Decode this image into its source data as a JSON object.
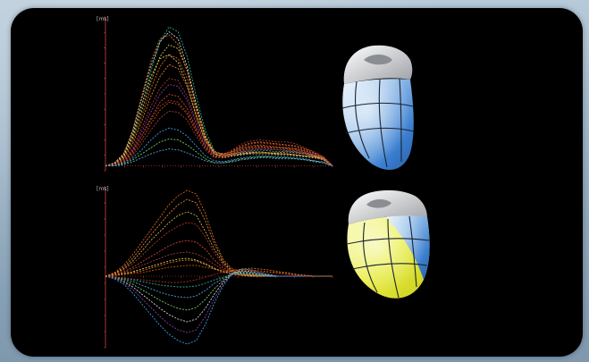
{
  "chart_data": [
    {
      "type": "line",
      "panel": "top",
      "y_tick_label": "[ms]",
      "series_count": 16,
      "x": [
        0,
        4,
        8,
        12,
        16,
        20,
        24,
        28,
        32,
        36,
        40,
        44,
        48,
        52,
        56,
        60,
        64,
        68,
        72,
        76,
        80,
        84,
        88,
        92,
        96,
        100
      ],
      "series": [
        {
          "color": "#2fb7a3",
          "values": [
            0,
            2,
            10,
            30,
            60,
            95,
            125,
            140,
            135,
            110,
            70,
            35,
            15,
            10,
            12,
            14,
            15,
            16,
            15,
            14,
            15,
            14,
            12,
            10,
            8,
            0
          ]
        },
        {
          "color": "#e8e8e8",
          "values": [
            0,
            3,
            12,
            35,
            68,
            100,
            125,
            135,
            128,
            100,
            62,
            30,
            12,
            8,
            10,
            12,
            13,
            14,
            13,
            12,
            12,
            11,
            10,
            9,
            7,
            0
          ]
        },
        {
          "color": "#d9c24a",
          "values": [
            0,
            2,
            9,
            28,
            55,
            85,
            110,
            122,
            118,
            96,
            60,
            30,
            14,
            11,
            12,
            13,
            14,
            14,
            13,
            13,
            14,
            13,
            12,
            10,
            8,
            0
          ]
        },
        {
          "color": "#e36a1e",
          "values": [
            0,
            2,
            8,
            25,
            50,
            78,
            100,
            112,
            108,
            88,
            55,
            28,
            14,
            12,
            14,
            18,
            20,
            21,
            20,
            19,
            18,
            17,
            15,
            12,
            8,
            0
          ]
        },
        {
          "color": "#f08a3a",
          "values": [
            0,
            1,
            7,
            22,
            45,
            70,
            90,
            102,
            98,
            80,
            50,
            26,
            13,
            12,
            15,
            20,
            23,
            24,
            23,
            22,
            21,
            20,
            17,
            13,
            9,
            0
          ]
        },
        {
          "color": "#c0392b",
          "values": [
            0,
            1,
            6,
            18,
            38,
            60,
            78,
            88,
            86,
            70,
            45,
            24,
            12,
            11,
            16,
            22,
            25,
            26,
            25,
            24,
            24,
            22,
            18,
            14,
            9,
            0
          ]
        },
        {
          "color": "#8e44ad",
          "values": [
            0,
            1,
            5,
            16,
            34,
            54,
            72,
            82,
            80,
            66,
            42,
            22,
            11,
            10,
            12,
            15,
            17,
            18,
            17,
            16,
            16,
            15,
            13,
            11,
            8,
            0
          ]
        },
        {
          "color": "#f2d56b",
          "values": [
            0,
            2,
            10,
            32,
            62,
            90,
            108,
            112,
            104,
            82,
            50,
            25,
            12,
            9,
            10,
            11,
            12,
            12,
            12,
            11,
            11,
            10,
            9,
            8,
            6,
            0
          ]
        },
        {
          "color": "#e74c3c",
          "values": [
            0,
            1,
            4,
            14,
            30,
            48,
            64,
            72,
            70,
            58,
            38,
            20,
            10,
            10,
            13,
            17,
            19,
            20,
            19,
            18,
            18,
            17,
            14,
            11,
            8,
            0
          ]
        },
        {
          "color": "#d35400",
          "values": [
            0,
            1,
            4,
            12,
            26,
            42,
            56,
            64,
            62,
            52,
            34,
            18,
            9,
            9,
            12,
            16,
            18,
            19,
            18,
            18,
            17,
            16,
            13,
            10,
            7,
            0
          ]
        },
        {
          "color": "#a94442",
          "values": [
            0,
            1,
            3,
            10,
            22,
            36,
            48,
            55,
            54,
            46,
            30,
            16,
            8,
            8,
            11,
            14,
            16,
            17,
            16,
            16,
            15,
            14,
            12,
            9,
            6,
            0
          ]
        },
        {
          "color": "#3fa9f5",
          "values": [
            0,
            1,
            3,
            8,
            16,
            26,
            34,
            38,
            36,
            30,
            20,
            10,
            5,
            4,
            6,
            8,
            9,
            10,
            10,
            9,
            9,
            8,
            7,
            5,
            4,
            0
          ]
        },
        {
          "color": "#7ddc7a",
          "values": [
            0,
            0,
            2,
            6,
            12,
            18,
            24,
            27,
            26,
            21,
            14,
            7,
            3,
            3,
            5,
            7,
            8,
            9,
            9,
            8,
            8,
            7,
            6,
            5,
            3,
            0
          ]
        },
        {
          "color": "#e67e22",
          "values": [
            0,
            2,
            11,
            36,
            70,
            105,
            128,
            132,
            122,
            96,
            58,
            28,
            12,
            10,
            11,
            12,
            13,
            13,
            13,
            12,
            12,
            11,
            10,
            9,
            7,
            0
          ]
        },
        {
          "color": "#b03a2e",
          "values": [
            0,
            1,
            5,
            15,
            30,
            46,
            60,
            66,
            64,
            54,
            36,
            19,
            10,
            10,
            14,
            19,
            22,
            23,
            22,
            21,
            20,
            19,
            16,
            12,
            8,
            0
          ]
        },
        {
          "color": "#5dade2",
          "values": [
            0,
            0,
            1,
            4,
            8,
            12,
            15,
            17,
            16,
            13,
            9,
            5,
            3,
            3,
            4,
            6,
            7,
            8,
            8,
            7,
            7,
            7,
            6,
            4,
            3,
            0
          ]
        }
      ],
      "ylim": [
        -5,
        150
      ],
      "xlim": [
        0,
        100
      ]
    },
    {
      "type": "line",
      "panel": "bottom",
      "y_tick_label": "[ms]",
      "series_count": 16,
      "x": [
        0,
        4,
        8,
        12,
        16,
        20,
        24,
        28,
        32,
        36,
        40,
        44,
        48,
        52,
        56,
        60,
        64,
        68,
        72,
        76,
        80,
        84,
        88,
        92,
        96,
        100
      ],
      "series": [
        {
          "color": "#e36a1e",
          "values": [
            0,
            4,
            12,
            24,
            38,
            52,
            66,
            80,
            90,
            96,
            92,
            70,
            40,
            18,
            8,
            4,
            2,
            1,
            0,
            0,
            0,
            0,
            0,
            0,
            0,
            0
          ]
        },
        {
          "color": "#f08a3a",
          "values": [
            0,
            3,
            10,
            20,
            33,
            46,
            58,
            70,
            80,
            86,
            82,
            62,
            36,
            16,
            6,
            3,
            2,
            1,
            0,
            0,
            0,
            0,
            0,
            0,
            0,
            0
          ]
        },
        {
          "color": "#d9c24a",
          "values": [
            0,
            3,
            8,
            17,
            28,
            40,
            50,
            60,
            68,
            72,
            68,
            50,
            30,
            14,
            5,
            2,
            1,
            0,
            0,
            0,
            0,
            0,
            0,
            0,
            0,
            0
          ]
        },
        {
          "color": "#c0392b",
          "values": [
            0,
            2,
            7,
            14,
            23,
            33,
            42,
            50,
            56,
            60,
            58,
            44,
            26,
            12,
            4,
            2,
            1,
            0,
            0,
            0,
            0,
            0,
            0,
            0,
            0,
            0
          ]
        },
        {
          "color": "#e74c3c",
          "values": [
            0,
            2,
            5,
            10,
            16,
            22,
            28,
            34,
            38,
            40,
            38,
            30,
            18,
            9,
            4,
            2,
            1,
            0,
            0,
            0,
            0,
            0,
            0,
            0,
            0,
            0
          ]
        },
        {
          "color": "#a94442",
          "values": [
            0,
            1,
            4,
            8,
            12,
            16,
            20,
            24,
            26,
            27,
            25,
            20,
            13,
            7,
            3,
            1,
            0,
            0,
            0,
            0,
            0,
            0,
            0,
            0,
            0,
            0
          ]
        },
        {
          "color": "#f2d56b",
          "values": [
            0,
            1,
            3,
            5,
            8,
            11,
            14,
            17,
            19,
            20,
            18,
            14,
            9,
            5,
            2,
            1,
            0,
            0,
            0,
            0,
            0,
            0,
            0,
            0,
            0,
            0
          ]
        },
        {
          "color": "#2fb7a3",
          "values": [
            0,
            -1,
            -2,
            -4,
            -6,
            -8,
            -10,
            -11,
            -12,
            -12,
            -11,
            -8,
            -4,
            -1,
            2,
            3,
            2,
            1,
            0,
            0,
            0,
            0,
            0,
            0,
            0,
            0
          ]
        },
        {
          "color": "#5dade2",
          "values": [
            0,
            -1,
            -3,
            -6,
            -10,
            -14,
            -18,
            -21,
            -23,
            -24,
            -22,
            -16,
            -8,
            -2,
            3,
            4,
            3,
            2,
            1,
            0,
            0,
            0,
            0,
            0,
            0,
            0
          ]
        },
        {
          "color": "#7ddc7a",
          "values": [
            0,
            -1,
            -4,
            -9,
            -15,
            -21,
            -27,
            -32,
            -36,
            -38,
            -35,
            -26,
            -14,
            -4,
            3,
            5,
            4,
            2,
            1,
            0,
            0,
            0,
            0,
            0,
            0,
            0
          ]
        },
        {
          "color": "#e8e8e8",
          "values": [
            0,
            -2,
            -6,
            -12,
            -20,
            -28,
            -36,
            -43,
            -48,
            -51,
            -48,
            -36,
            -20,
            -6,
            3,
            6,
            5,
            3,
            1,
            0,
            0,
            0,
            0,
            0,
            0,
            0
          ]
        },
        {
          "color": "#8e44ad",
          "values": [
            0,
            -2,
            -7,
            -15,
            -25,
            -35,
            -45,
            -54,
            -60,
            -63,
            -60,
            -45,
            -25,
            -8,
            3,
            7,
            6,
            3,
            1,
            0,
            0,
            0,
            0,
            0,
            0,
            0
          ]
        },
        {
          "color": "#3fa9f5",
          "values": [
            0,
            -3,
            -9,
            -19,
            -31,
            -43,
            -55,
            -65,
            -72,
            -76,
            -72,
            -54,
            -30,
            -10,
            3,
            8,
            7,
            4,
            2,
            0,
            0,
            0,
            0,
            0,
            0,
            0
          ]
        },
        {
          "color": "#d35400",
          "values": [
            0,
            1,
            2,
            3,
            4,
            6,
            8,
            10,
            11,
            12,
            12,
            10,
            8,
            6,
            6,
            7,
            7,
            6,
            5,
            4,
            3,
            2,
            1,
            0,
            0,
            0
          ]
        },
        {
          "color": "#b03a2e",
          "values": [
            0,
            -1,
            -2,
            -3,
            -4,
            -5,
            -6,
            -7,
            -7,
            -6,
            -4,
            -1,
            2,
            5,
            7,
            7,
            6,
            5,
            4,
            3,
            2,
            1,
            0,
            0,
            0,
            0
          ]
        },
        {
          "color": "#e67e22",
          "values": [
            0,
            1,
            2,
            4,
            6,
            9,
            12,
            15,
            17,
            18,
            17,
            13,
            8,
            4,
            6,
            8,
            9,
            8,
            7,
            5,
            4,
            2,
            1,
            0,
            0,
            0
          ]
        }
      ],
      "ylim": [
        -80,
        100
      ],
      "xlim": [
        0,
        100
      ]
    }
  ],
  "illustrations": [
    {
      "name": "heart-model-top",
      "palette": [
        "#ffffff",
        "#9fc5ec",
        "#3b7fd0",
        "#2a5fa8"
      ]
    },
    {
      "name": "heart-model-bottom",
      "palette": [
        "#f7f9a8",
        "#e8ec3c",
        "#9fc5ec",
        "#3b7fd0"
      ]
    }
  ],
  "colors": {
    "panel_background": "#000000",
    "frame_background": "#8ea8bd",
    "axis_color": "#d0443a"
  }
}
